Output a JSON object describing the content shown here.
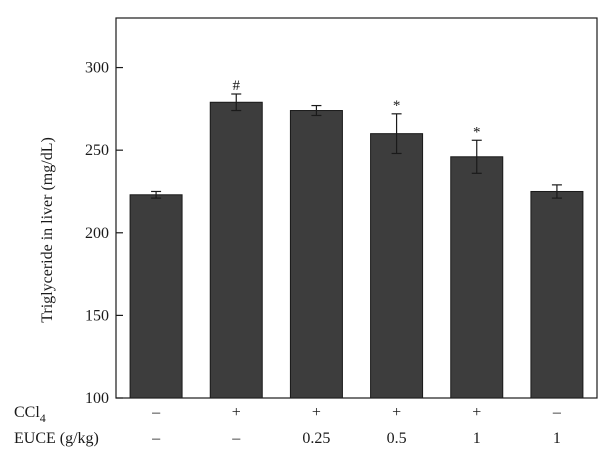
{
  "chart_data": {
    "type": "bar",
    "title": "",
    "xlabel": "",
    "ylabel": "Triglyceride in liver (mg/dL)",
    "ylim": [
      100,
      330
    ],
    "yticks": [
      100,
      150,
      200,
      250,
      300
    ],
    "grid": false,
    "bar_color": "#3d3d3d",
    "values": [
      223,
      279,
      274,
      260,
      246,
      225
    ],
    "errors": [
      2,
      5,
      3,
      12,
      10,
      4
    ],
    "annotations": [
      "",
      "#",
      "",
      "*",
      "*",
      ""
    ],
    "treatment_rows": [
      {
        "label": "CCl",
        "subscript": "4",
        "values": [
          "–",
          "+",
          "+",
          "+",
          "+",
          "–"
        ]
      },
      {
        "label": "EUCE (g/kg)",
        "subscript": "",
        "values": [
          "–",
          "–",
          "0.25",
          "0.5",
          "1",
          "1"
        ]
      }
    ]
  }
}
